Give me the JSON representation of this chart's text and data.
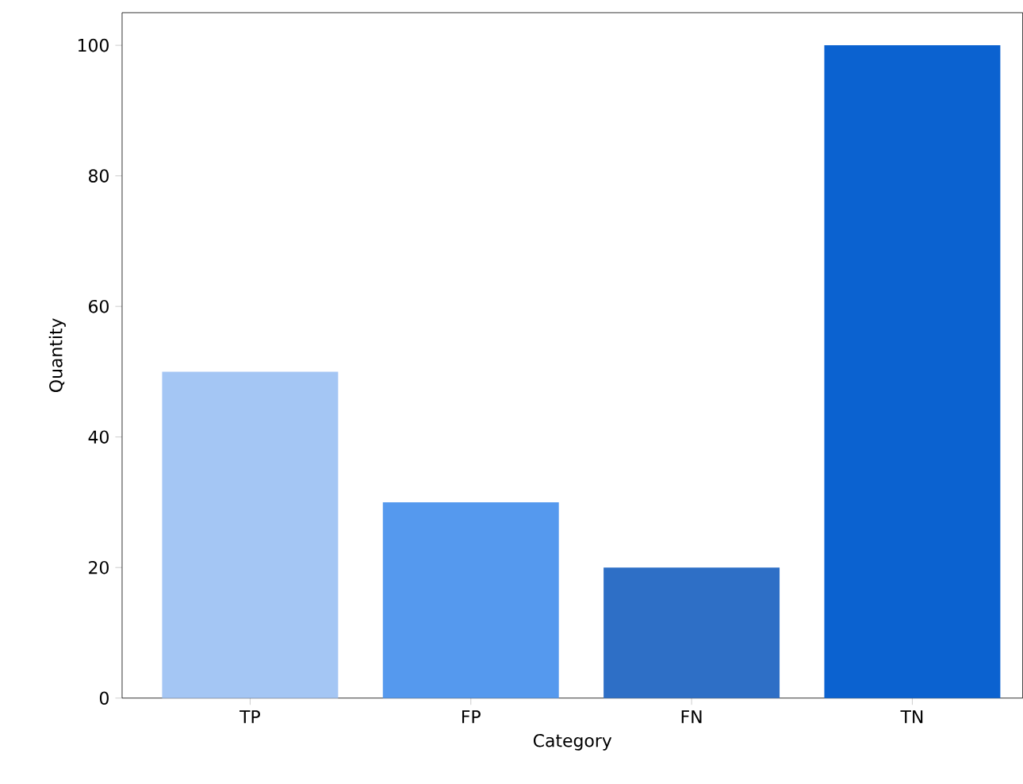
{
  "chart_data": {
    "type": "bar",
    "xlabel": "Category",
    "ylabel": "Quantity",
    "categories": [
      "TP",
      "FP",
      "FN",
      "TN"
    ],
    "values": [
      50,
      30,
      20,
      100
    ],
    "colors": [
      "#a4c6f4",
      "#5599ee",
      "#2e6fc6",
      "#0b62d0"
    ],
    "ylim": [
      0,
      105
    ],
    "yticks": [
      0,
      20,
      40,
      60,
      80,
      100
    ]
  }
}
